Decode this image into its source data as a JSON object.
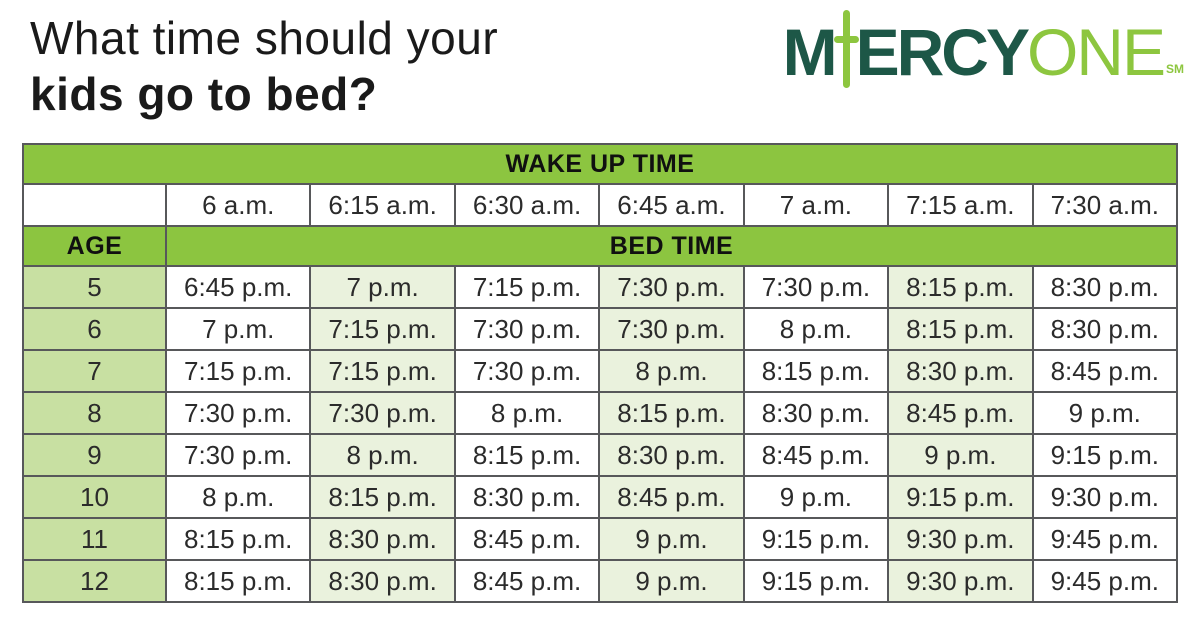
{
  "title": {
    "line1": "What time should your",
    "line2": "kids go to bed?"
  },
  "logo": {
    "m": "M",
    "ercy": "ERCY",
    "one": "ONE",
    "sm": "SM",
    "dark_green": "#1d5747",
    "light_green": "#8dc63f"
  },
  "colors": {
    "header_green": "#8cc540",
    "age_cell_green": "#c8e0a2",
    "alt_cell_green": "#eaf2dd",
    "cell_white": "#ffffff",
    "border_gray": "#57585a",
    "text_dark": "#2b2b2b"
  },
  "chart_data": {
    "type": "table",
    "title": "What time should your kids go to bed?",
    "wake_header": "WAKE UP TIME",
    "age_header": "AGE",
    "bed_header": "BED TIME",
    "wake_times": [
      "6 a.m.",
      "6:15 a.m.",
      "6:30 a.m.",
      "6:45 a.m.",
      "7 a.m.",
      "7:15 a.m.",
      "7:30 a.m."
    ],
    "rows": [
      {
        "age": "5",
        "times": [
          "6:45 p.m.",
          "7 p.m.",
          "7:15 p.m.",
          "7:30 p.m.",
          "7:30 p.m.",
          "8:15 p.m.",
          "8:30 p.m."
        ]
      },
      {
        "age": "6",
        "times": [
          "7 p.m.",
          "7:15 p.m.",
          "7:30 p.m.",
          "7:30 p.m.",
          "8 p.m.",
          "8:15 p.m.",
          "8:30 p.m."
        ]
      },
      {
        "age": "7",
        "times": [
          "7:15 p.m.",
          "7:15 p.m.",
          "7:30 p.m.",
          "8 p.m.",
          "8:15 p.m.",
          "8:30 p.m.",
          "8:45 p.m."
        ]
      },
      {
        "age": "8",
        "times": [
          "7:30 p.m.",
          "7:30 p.m.",
          "8 p.m.",
          "8:15 p.m.",
          "8:30 p.m.",
          "8:45 p.m.",
          "9 p.m."
        ]
      },
      {
        "age": "9",
        "times": [
          "7:30 p.m.",
          "8 p.m.",
          "8:15 p.m.",
          "8:30 p.m.",
          "8:45 p.m.",
          "9 p.m.",
          "9:15 p.m."
        ]
      },
      {
        "age": "10",
        "times": [
          "8 p.m.",
          "8:15 p.m.",
          "8:30 p.m.",
          "8:45 p.m.",
          "9 p.m.",
          "9:15 p.m.",
          "9:30 p.m."
        ]
      },
      {
        "age": "11",
        "times": [
          "8:15 p.m.",
          "8:30 p.m.",
          "8:45 p.m.",
          "9 p.m.",
          "9:15 p.m.",
          "9:30 p.m.",
          "9:45 p.m."
        ]
      },
      {
        "age": "12",
        "times": [
          "8:15 p.m.",
          "8:30 p.m.",
          "8:45 p.m.",
          "9 p.m.",
          "9:15 p.m.",
          "9:30 p.m.",
          "9:45 p.m."
        ]
      }
    ]
  }
}
